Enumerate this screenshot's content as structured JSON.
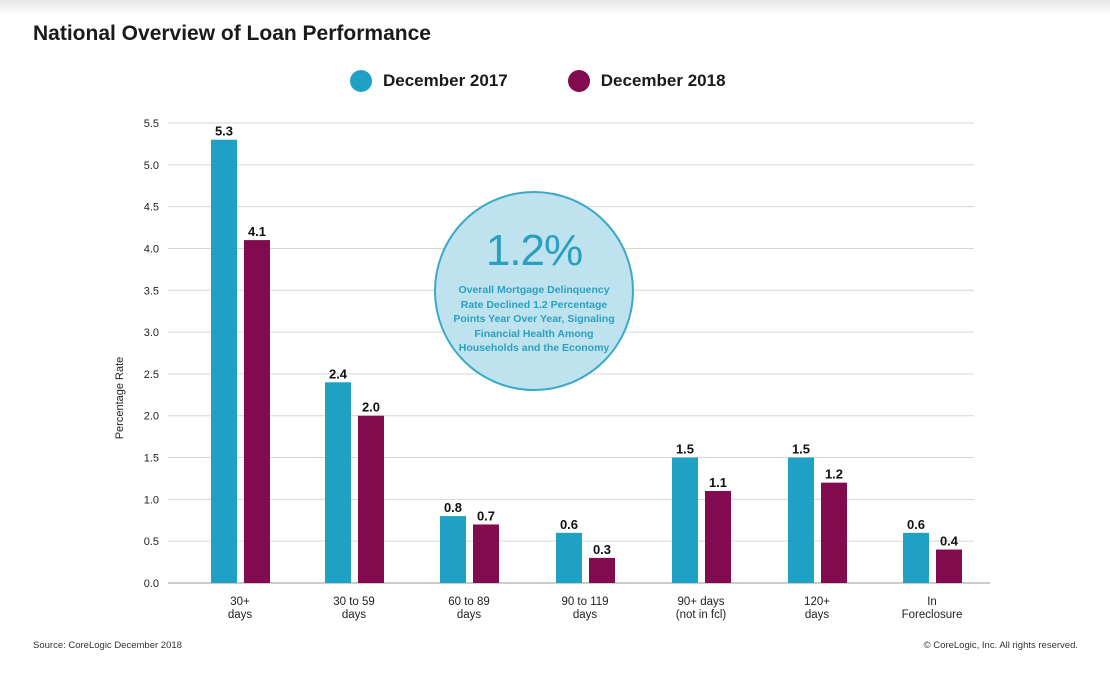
{
  "title": "National Overview of Loan Performance",
  "legend": [
    {
      "name": "December 2017",
      "color": "#1ea1c4"
    },
    {
      "name": "December 2018",
      "color": "#820a4e"
    }
  ],
  "callout": {
    "value": "1.2%",
    "text": "Overall Mortgage Delinquency Rate Declined 1.2 Percentage Points Year Over Year, Signaling Financial Health Among Households and the Economy"
  },
  "footer": {
    "source": "Source: CoreLogic December 2018",
    "copyright": "© CoreLogic, Inc. All rights reserved."
  },
  "chart_data": {
    "type": "bar",
    "title": "National Overview of Loan Performance",
    "ylabel": "Percentage Rate",
    "xlabel": "",
    "ylim": [
      0,
      5.5
    ],
    "yticks": [
      "0.0",
      "0.5",
      "1.0",
      "1.5",
      "2.0",
      "2.5",
      "3.0",
      "3.5",
      "4.0",
      "4.5",
      "5.0",
      "5.5"
    ],
    "grid": true,
    "legend_position": "top-center",
    "categories": [
      [
        "30+",
        "days"
      ],
      [
        "30 to 59",
        "days"
      ],
      [
        "60 to 89",
        "days"
      ],
      [
        "90 to 119",
        "days"
      ],
      [
        "90+ days",
        "(not in fcl)"
      ],
      [
        "120+",
        "days"
      ],
      [
        "In",
        "Foreclosure"
      ]
    ],
    "series": [
      {
        "name": "December 2017",
        "color": "#1ea1c4",
        "values": [
          5.3,
          2.4,
          0.8,
          0.6,
          1.5,
          1.5,
          0.6
        ]
      },
      {
        "name": "December 2018",
        "color": "#820a4e",
        "values": [
          4.1,
          2.0,
          0.7,
          0.3,
          1.1,
          1.2,
          0.4
        ]
      }
    ]
  }
}
